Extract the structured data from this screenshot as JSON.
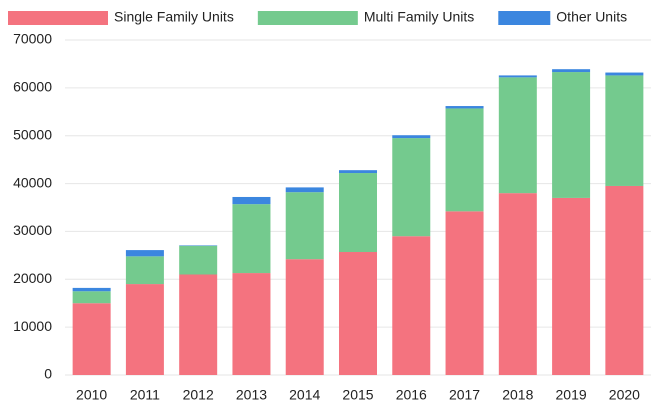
{
  "chart_data": {
    "type": "stacked_bar",
    "categories": [
      "2010",
      "2011",
      "2012",
      "2013",
      "2014",
      "2015",
      "2016",
      "2017",
      "2018",
      "2019",
      "2020"
    ],
    "series": [
      {
        "name": "Single Family Units",
        "color": "#f4737f",
        "values": [
          15000,
          19000,
          21000,
          21300,
          24200,
          25700,
          29000,
          34200,
          38000,
          37000,
          39500
        ]
      },
      {
        "name": "Multi Family Units",
        "color": "#74ca8e",
        "values": [
          2500,
          5800,
          6000,
          14400,
          14000,
          16500,
          20500,
          21500,
          24200,
          26300,
          23100
        ]
      },
      {
        "name": "Other Units",
        "color": "#3b86df",
        "values": [
          700,
          1300,
          100,
          1500,
          1000,
          600,
          600,
          500,
          400,
          600,
          600
        ]
      }
    ],
    "ylim": [
      0,
      70000
    ],
    "yticks": [
      0,
      10000,
      20000,
      30000,
      40000,
      50000,
      60000,
      70000
    ],
    "grid": true,
    "legend": "top"
  }
}
